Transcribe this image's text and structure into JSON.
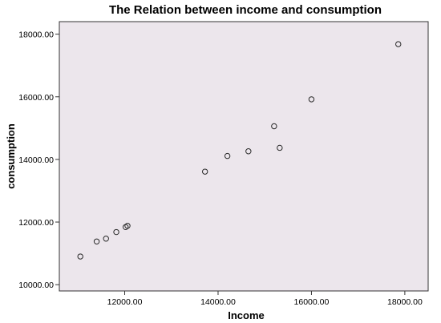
{
  "chart_data": {
    "type": "scatter",
    "title": "The Relation between income and consumption",
    "xlabel": "Income",
    "ylabel": "consumption",
    "xlim": [
      10600,
      18500
    ],
    "ylim": [
      9800,
      18400
    ],
    "xticks": [
      "12000.00",
      "14000.00",
      "16000.00",
      "18000.00"
    ],
    "yticks": [
      "10000.00",
      "12000.00",
      "14000.00",
      "16000.00",
      "18000.00"
    ],
    "grid": false,
    "points": [
      {
        "x": 11050,
        "y": 10900
      },
      {
        "x": 11400,
        "y": 11380
      },
      {
        "x": 11600,
        "y": 11470
      },
      {
        "x": 11820,
        "y": 11680
      },
      {
        "x": 12020,
        "y": 11840
      },
      {
        "x": 12060,
        "y": 11880
      },
      {
        "x": 13720,
        "y": 13610
      },
      {
        "x": 14200,
        "y": 14110
      },
      {
        "x": 14650,
        "y": 14260
      },
      {
        "x": 15200,
        "y": 15060
      },
      {
        "x": 15320,
        "y": 14370
      },
      {
        "x": 16000,
        "y": 15920
      },
      {
        "x": 17860,
        "y": 17680
      }
    ]
  },
  "colors": {
    "plot_background": "#ece6ec",
    "marker_stroke": "#2a2a2a",
    "axis": "#333333"
  }
}
